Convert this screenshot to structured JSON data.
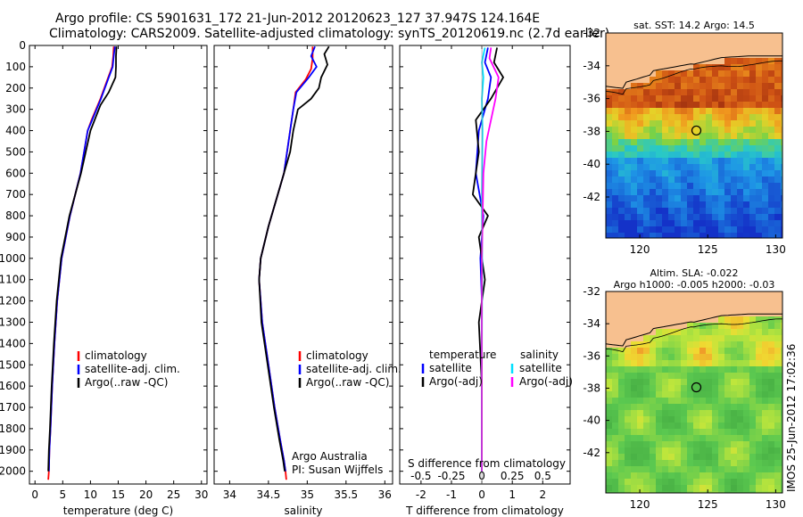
{
  "header": {
    "line1": "Argo profile: CS 5901631_172 21-Jun-2012 20120623_127 37.947S 124.164E",
    "line2": "Climatology: CARS2009. Satellite-adjusted climatology: synTS_20120619.nc (2.7d earlier)"
  },
  "colors": {
    "climatology": "#ff0000",
    "satellite": "#0000ff",
    "argo": "#000000",
    "sat_salinity": "#00e0ff",
    "argo_adj_salinity": "#ff00ff"
  },
  "chart_data": [
    {
      "id": "temperature",
      "type": "line",
      "xlabel": "temperature (deg C)",
      "ylabel": "",
      "xlim": [
        -1,
        31
      ],
      "ylim": [
        2060,
        0
      ],
      "xticks": [
        0,
        5,
        10,
        15,
        20,
        25,
        30
      ],
      "yticks": [
        0,
        100,
        200,
        300,
        400,
        500,
        600,
        700,
        800,
        900,
        1000,
        1100,
        1200,
        1300,
        1400,
        1500,
        1600,
        1700,
        1800,
        1900,
        2000
      ],
      "legend": [
        "climatology",
        "satellite-adj. clim.",
        "Argo(..raw -QC)"
      ],
      "series": [
        {
          "name": "climatology",
          "color": "#ff0000",
          "x": [
            14.2,
            14.1,
            13.9,
            13.2,
            11.8,
            10.2,
            9.5,
            8.2,
            6.3,
            4.8,
            4.0,
            3.5,
            3.1,
            2.8,
            2.6,
            2.5,
            2.4
          ],
          "y": [
            5,
            50,
            100,
            150,
            250,
            350,
            400,
            600,
            800,
            1000,
            1200,
            1400,
            1600,
            1800,
            1900,
            2000,
            2040
          ]
        },
        {
          "name": "satellite-adj. clim.",
          "color": "#0000ff",
          "x": [
            14.4,
            14.2,
            14.0,
            13.3,
            11.9,
            10.3,
            9.5,
            8.2,
            6.3,
            4.8,
            4.0,
            3.5,
            3.1,
            2.8,
            2.6,
            2.5
          ],
          "y": [
            5,
            50,
            100,
            150,
            250,
            350,
            400,
            600,
            800,
            1000,
            1200,
            1400,
            1600,
            1800,
            1900,
            2000
          ]
        },
        {
          "name": "Argo(..raw -QC)",
          "color": "#000000",
          "x": [
            14.7,
            14.6,
            14.6,
            14.5,
            13.3,
            11.8,
            10.0,
            8.3,
            6.2,
            4.7,
            3.9,
            3.4,
            3.0,
            2.7,
            2.5,
            2.4
          ],
          "y": [
            5,
            50,
            100,
            150,
            220,
            280,
            400,
            600,
            800,
            1000,
            1200,
            1400,
            1600,
            1800,
            1900,
            2000
          ]
        }
      ]
    },
    {
      "id": "salinity",
      "type": "line",
      "xlabel": "salinity",
      "ylabel": "",
      "xlim": [
        33.8,
        36.1
      ],
      "ylim": [
        2060,
        0
      ],
      "xticks": [
        34,
        34.5,
        35,
        35.5,
        36
      ],
      "legend": [
        "climatology",
        "satellite-adj. clim.",
        "Argo(..raw -QC)"
      ],
      "annotations": [
        "Argo Australia",
        "PI: Susan Wijffels"
      ],
      "series": [
        {
          "name": "climatology",
          "color": "#ff0000",
          "x": [
            35.07,
            35.07,
            35.05,
            34.98,
            34.85,
            34.82,
            34.78,
            34.7,
            34.5,
            34.4,
            34.38,
            34.42,
            34.5,
            34.58,
            34.65,
            34.7,
            34.72,
            34.73
          ],
          "y": [
            5,
            60,
            110,
            160,
            220,
            300,
            400,
            600,
            850,
            1000,
            1100,
            1300,
            1500,
            1700,
            1850,
            1950,
            2000,
            2040
          ]
        },
        {
          "name": "satellite-adj. clim.",
          "color": "#0000ff",
          "x": [
            35.1,
            35.05,
            35.12,
            35.02,
            34.86,
            34.82,
            34.78,
            34.7,
            34.5,
            34.4,
            34.38,
            34.42,
            34.5,
            34.58,
            34.65,
            34.7,
            34.72
          ],
          "y": [
            5,
            50,
            100,
            150,
            220,
            300,
            400,
            600,
            850,
            1000,
            1100,
            1300,
            1500,
            1700,
            1850,
            1950,
            2000
          ]
        },
        {
          "name": "Argo(..raw -QC)",
          "color": "#000000",
          "x": [
            35.28,
            35.22,
            35.26,
            35.18,
            35.15,
            35.05,
            34.88,
            34.82,
            34.78,
            34.7,
            34.5,
            34.4,
            34.38,
            34.41,
            34.49,
            34.57,
            34.64,
            34.69,
            34.71
          ],
          "y": [
            5,
            40,
            90,
            150,
            200,
            250,
            300,
            400,
            500,
            600,
            850,
            1000,
            1100,
            1300,
            1500,
            1700,
            1850,
            1950,
            2000
          ]
        }
      ]
    },
    {
      "id": "difference",
      "type": "line",
      "xlabel": "T difference from climatology",
      "xlabel_top": "S difference from climatology",
      "ylabel": "",
      "xlim": [
        -2.7,
        2.9
      ],
      "ylim": [
        2060,
        0
      ],
      "xticks": [
        -2,
        -1,
        0,
        1,
        2
      ],
      "xticks_top": [
        -0.5,
        -0.25,
        0,
        0.25,
        0.5
      ],
      "legend_groups": [
        {
          "title": "temperature",
          "items": [
            "satellite",
            "Argo(-adj)"
          ]
        },
        {
          "title": "salinity",
          "items": [
            "satellite",
            "Argo(-adj)"
          ]
        }
      ],
      "series": [
        {
          "name": "temperature satellite",
          "color": "#0000ff",
          "x": [
            0.2,
            0.1,
            0.3,
            0.2,
            -0.1,
            -0.2,
            0.05,
            -0.05,
            0.0,
            0.0,
            0.0
          ],
          "y": [
            10,
            80,
            150,
            250,
            400,
            600,
            800,
            1000,
            1200,
            1600,
            2000
          ]
        },
        {
          "name": "temperature Argo(-adj)",
          "color": "#000000",
          "x": [
            0.5,
            0.4,
            0.7,
            0.3,
            -0.2,
            -0.1,
            -0.3,
            0.2,
            -0.1,
            0.1,
            -0.1,
            0.0,
            0.0
          ],
          "y": [
            10,
            80,
            150,
            250,
            350,
            500,
            700,
            800,
            900,
            1100,
            1300,
            1600,
            2000
          ]
        },
        {
          "name": "salinity satellite",
          "color": "#00e0ff",
          "x": [
            0.1,
            0.0,
            0.05,
            0.0,
            0.02,
            0.0,
            0.01,
            0.0,
            0.0
          ],
          "y": [
            10,
            80,
            150,
            250,
            400,
            700,
            1000,
            1500,
            2000
          ]
        },
        {
          "name": "salinity Argo(-adj)",
          "color": "#ff00ff",
          "x": [
            0.3,
            0.25,
            0.55,
            0.45,
            0.3,
            0.15,
            0.05,
            0.0,
            0.0
          ],
          "y": [
            10,
            60,
            150,
            250,
            350,
            450,
            600,
            1000,
            2000
          ]
        }
      ]
    },
    {
      "id": "map-sst",
      "type": "heatmap",
      "title": "sat. SST: 14.2  Argo: 14.5",
      "xlim": [
        117.5,
        130.5
      ],
      "ylim": [
        -44.5,
        -32
      ],
      "xticks": [
        120,
        125,
        130
      ],
      "yticks": [
        -32,
        -34,
        -36,
        -38,
        -40,
        -42
      ],
      "marker": {
        "lon": 124.164,
        "lat": -37.947
      }
    },
    {
      "id": "map-sla",
      "type": "heatmap",
      "title": "Altim. SLA: -0.022",
      "subtitle": "Argo h1000: -0.005  h2000: -0.03",
      "xlim": [
        117.5,
        130.5
      ],
      "ylim": [
        -44.5,
        -32
      ],
      "xticks": [
        120,
        125,
        130
      ],
      "yticks": [
        -32,
        -34,
        -36,
        -38,
        -40,
        -42
      ],
      "marker": {
        "lon": 124.164,
        "lat": -37.947
      }
    }
  ],
  "watermark": "IMOS 25-Jun-2012 17:02:36"
}
